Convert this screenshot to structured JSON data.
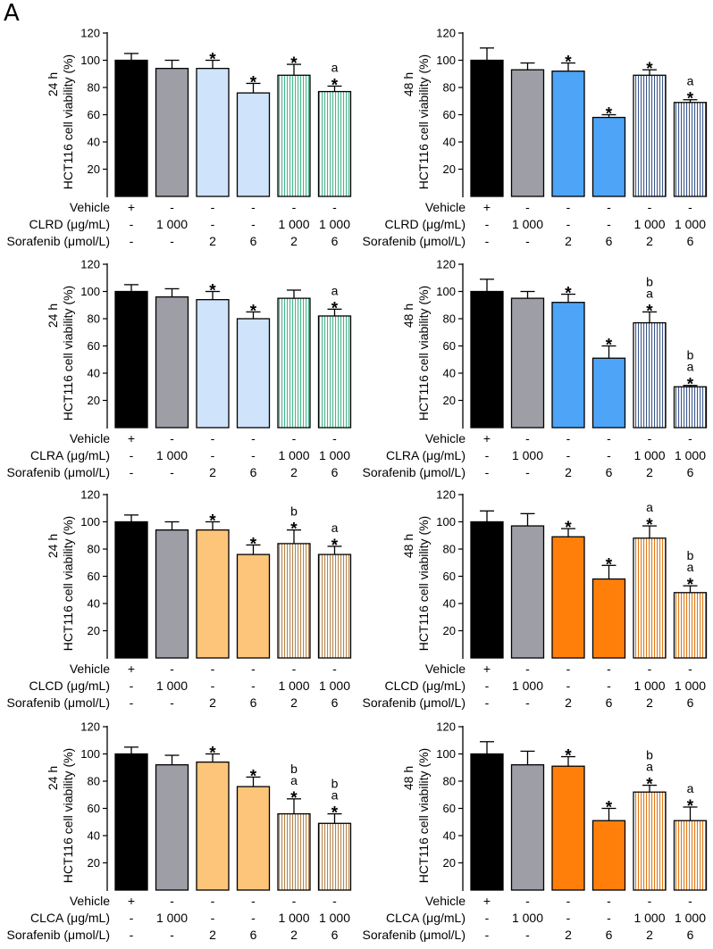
{
  "panel_label": "A",
  "colors": {
    "vehicle": "#000000",
    "extract": "#9d9ea6",
    "light_blue": "#cfe4fb",
    "blue": "#4ea4f6",
    "light_orange": "#fcc579",
    "orange": "#ff7f0a",
    "stripe_green": "#48b78c",
    "stripe_blue": "#3e5a8c",
    "stripe_brown": "#b5864f",
    "stripe_orange": "#e07a1a"
  },
  "row_labels": {
    "vehicle": "Vehicle",
    "sorafenib": "Sorafenib (μmol/L)"
  },
  "chart_data": [
    {
      "type": "bar",
      "time_label": "24 h",
      "ylabel": "HCT116 cell viability (%)",
      "ylim": [
        0,
        120
      ],
      "yticks": [
        20,
        40,
        60,
        80,
        100,
        120
      ],
      "extract_label": "CLRD (μg/mL)",
      "vehicle_row": [
        "+",
        "-",
        "-",
        "-",
        "-",
        "-"
      ],
      "extract_row": [
        "-",
        "1 000",
        "-",
        "-",
        "1 000",
        "1 000"
      ],
      "sorafenib_row": [
        "-",
        "-",
        "2",
        "6",
        "2",
        "6"
      ],
      "values": [
        100,
        94,
        94,
        76,
        89,
        77
      ],
      "errors": [
        5,
        6,
        6,
        7,
        8,
        4
      ],
      "annotations": [
        "",
        "",
        "*",
        "*",
        "*",
        "a\n*"
      ],
      "fills": [
        "vehicle",
        "extract",
        "light_blue",
        "light_blue",
        "stripe_green",
        "stripe_green"
      ]
    },
    {
      "type": "bar",
      "time_label": "48 h",
      "ylabel": "HCT116 cell viability (%)",
      "ylim": [
        0,
        120
      ],
      "yticks": [
        20,
        40,
        60,
        80,
        100,
        120
      ],
      "extract_label": "CLRD (μg/mL)",
      "vehicle_row": [
        "+",
        "-",
        "-",
        "-",
        "-",
        "-"
      ],
      "extract_row": [
        "-",
        "1 000",
        "-",
        "-",
        "1 000",
        "1 000"
      ],
      "sorafenib_row": [
        "-",
        "-",
        "2",
        "6",
        "2",
        "6"
      ],
      "values": [
        100,
        93,
        92,
        58,
        89,
        69
      ],
      "errors": [
        9,
        5,
        6,
        2,
        4,
        2
      ],
      "annotations": [
        "",
        "",
        "*",
        "*",
        "*",
        "a\n*"
      ],
      "fills": [
        "vehicle",
        "extract",
        "blue",
        "blue",
        "stripe_blue",
        "stripe_blue"
      ]
    },
    {
      "type": "bar",
      "time_label": "24 h",
      "ylabel": "HCT116 cell viability (%)",
      "ylim": [
        0,
        120
      ],
      "yticks": [
        20,
        40,
        60,
        80,
        100,
        120
      ],
      "extract_label": "CLRA (μg/mL)",
      "vehicle_row": [
        "+",
        "-",
        "-",
        "-",
        "-",
        "-"
      ],
      "extract_row": [
        "-",
        "1 000",
        "-",
        "-",
        "1 000",
        "1 000"
      ],
      "sorafenib_row": [
        "-",
        "-",
        "2",
        "6",
        "2",
        "6"
      ],
      "values": [
        100,
        96,
        94,
        80,
        95,
        82
      ],
      "errors": [
        5,
        6,
        6,
        5,
        6,
        5
      ],
      "annotations": [
        "",
        "",
        "*",
        "*",
        "",
        "a\n*"
      ],
      "fills": [
        "vehicle",
        "extract",
        "light_blue",
        "light_blue",
        "stripe_green",
        "stripe_green"
      ]
    },
    {
      "type": "bar",
      "time_label": "48 h",
      "ylabel": "HCT116 cell viability (%)",
      "ylim": [
        0,
        120
      ],
      "yticks": [
        20,
        40,
        60,
        80,
        100,
        120
      ],
      "extract_label": "CLRA (μg/mL)",
      "vehicle_row": [
        "+",
        "-",
        "-",
        "-",
        "-",
        "-"
      ],
      "extract_row": [
        "-",
        "1 000",
        "-",
        "-",
        "1 000",
        "1 000"
      ],
      "sorafenib_row": [
        "-",
        "-",
        "2",
        "6",
        "2",
        "6"
      ],
      "values": [
        100,
        95,
        92,
        51,
        77,
        30
      ],
      "errors": [
        9,
        5,
        6,
        9,
        8,
        1
      ],
      "annotations": [
        "",
        "",
        "*",
        "*",
        "b\na\n*",
        "b\na\n*"
      ],
      "fills": [
        "vehicle",
        "extract",
        "blue",
        "blue",
        "stripe_blue",
        "stripe_blue"
      ]
    },
    {
      "type": "bar",
      "time_label": "24 h",
      "ylabel": "HCT116 cell viability (%)",
      "ylim": [
        0,
        120
      ],
      "yticks": [
        20,
        40,
        60,
        80,
        100,
        120
      ],
      "extract_label": "CLCD (μg/mL)",
      "vehicle_row": [
        "+",
        "-",
        "-",
        "-",
        "-",
        "-"
      ],
      "extract_row": [
        "-",
        "1 000",
        "-",
        "-",
        "1 000",
        "1 000"
      ],
      "sorafenib_row": [
        "-",
        "-",
        "2",
        "6",
        "2",
        "6"
      ],
      "values": [
        100,
        94,
        94,
        76,
        84,
        76
      ],
      "errors": [
        5,
        6,
        6,
        7,
        10,
        6
      ],
      "annotations": [
        "",
        "",
        "*",
        "*",
        "b\n*",
        "a\n*"
      ],
      "fills": [
        "vehicle",
        "extract",
        "light_orange",
        "light_orange",
        "stripe_brown",
        "stripe_brown"
      ]
    },
    {
      "type": "bar",
      "time_label": "48 h",
      "ylabel": "HCT116 cell viability (%)",
      "ylim": [
        0,
        120
      ],
      "yticks": [
        20,
        40,
        60,
        80,
        100,
        120
      ],
      "extract_label": "CLCD (μg/mL)",
      "vehicle_row": [
        "+",
        "-",
        "-",
        "-",
        "-",
        "-"
      ],
      "extract_row": [
        "-",
        "1 000",
        "-",
        "-",
        "1 000",
        "1 000"
      ],
      "sorafenib_row": [
        "-",
        "-",
        "2",
        "6",
        "2",
        "6"
      ],
      "values": [
        100,
        97,
        89,
        58,
        88,
        48
      ],
      "errors": [
        8,
        9,
        6,
        10,
        9,
        5
      ],
      "annotations": [
        "",
        "",
        "*",
        "*",
        "a\n*",
        "b\na\n*"
      ],
      "fills": [
        "vehicle",
        "extract",
        "orange",
        "orange",
        "stripe_orange",
        "stripe_orange"
      ]
    },
    {
      "type": "bar",
      "time_label": "24 h",
      "ylabel": "HCT116 cell viability (%)",
      "ylim": [
        0,
        120
      ],
      "yticks": [
        20,
        40,
        60,
        80,
        100,
        120
      ],
      "extract_label": "CLCA (μg/mL)",
      "vehicle_row": [
        "+",
        "-",
        "-",
        "-",
        "-",
        "-"
      ],
      "extract_row": [
        "-",
        "1 000",
        "-",
        "-",
        "1 000",
        "1 000"
      ],
      "sorafenib_row": [
        "-",
        "-",
        "2",
        "6",
        "2",
        "6"
      ],
      "values": [
        100,
        92,
        94,
        76,
        56,
        49
      ],
      "errors": [
        5,
        7,
        6,
        7,
        11,
        7
      ],
      "annotations": [
        "",
        "",
        "*",
        "*",
        "b\na\n*",
        "b\na\n*"
      ],
      "fills": [
        "vehicle",
        "extract",
        "light_orange",
        "light_orange",
        "stripe_brown",
        "stripe_brown"
      ]
    },
    {
      "type": "bar",
      "time_label": "48 h",
      "ylabel": "HCT116 cell viability (%)",
      "ylim": [
        0,
        120
      ],
      "yticks": [
        20,
        40,
        60,
        80,
        100,
        120
      ],
      "extract_label": "CLCA (μg/mL)",
      "vehicle_row": [
        "+",
        "-",
        "-",
        "-",
        "-",
        "-"
      ],
      "extract_row": [
        "-",
        "1 000",
        "-",
        "-",
        "1 000",
        "1 000"
      ],
      "sorafenib_row": [
        "-",
        "-",
        "2",
        "6",
        "2",
        "6"
      ],
      "values": [
        100,
        92,
        91,
        51,
        72,
        51
      ],
      "errors": [
        9,
        10,
        7,
        9,
        5,
        10
      ],
      "annotations": [
        "",
        "",
        "*",
        "*",
        "b\na\n*",
        "a\n*"
      ],
      "fills": [
        "vehicle",
        "extract",
        "orange",
        "orange",
        "stripe_orange",
        "stripe_orange"
      ]
    }
  ]
}
